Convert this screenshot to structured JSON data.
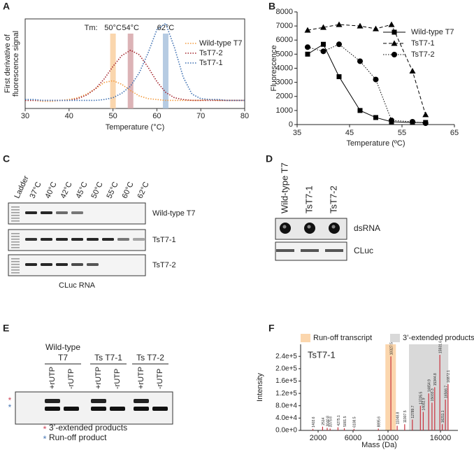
{
  "panel_labels": [
    "A",
    "B",
    "C",
    "D",
    "E",
    "F"
  ],
  "chart_data": [
    {
      "type": "line",
      "x": [
        30,
        32,
        34,
        36,
        38,
        40,
        42,
        44,
        46,
        48,
        50,
        52,
        54,
        56,
        58,
        60,
        62,
        64,
        66,
        68,
        70,
        72,
        74,
        76,
        78,
        80
      ],
      "xlim": [
        30,
        80
      ],
      "xticks": [
        30,
        40,
        50,
        60,
        70,
        80
      ],
      "ylim": [
        0,
        1
      ],
      "xlabel": "Temperature (°C)",
      "ylabel": [
        "First derivative of",
        "fluorescence signal"
      ],
      "line_style": "dotted",
      "legend": "upper right",
      "annotation": "Tm:",
      "bands": [
        {
          "value": 50,
          "label": "50°C",
          "color": "#f9cf9f"
        },
        {
          "value": 54,
          "label": "54°C",
          "color": "#d6a6a9"
        },
        {
          "value": 62,
          "label": "62°C",
          "color": "#a9c2dd"
        }
      ],
      "series": [
        {
          "name": "Wild-type T7",
          "color": "#f39a3d",
          "values": [
            0.09,
            0.09,
            0.08,
            0.08,
            0.09,
            0.1,
            0.12,
            0.16,
            0.22,
            0.29,
            0.31,
            0.27,
            0.2,
            0.14,
            0.11,
            0.1,
            0.09,
            0.09,
            0.09,
            0.09,
            0.09,
            0.1,
            0.09,
            0.09,
            0.09,
            0.09
          ]
        },
        {
          "name": "TsT7-2",
          "color": "#a3242c",
          "values": [
            0.09,
            0.09,
            0.09,
            0.09,
            0.09,
            0.09,
            0.11,
            0.15,
            0.22,
            0.33,
            0.47,
            0.59,
            0.65,
            0.6,
            0.46,
            0.3,
            0.18,
            0.12,
            0.1,
            0.09,
            0.09,
            0.09,
            0.09,
            0.09,
            0.09,
            0.09
          ]
        },
        {
          "name": "TsT7-1",
          "color": "#3a6db0",
          "values": [
            0.1,
            0.1,
            0.09,
            0.09,
            0.09,
            0.09,
            0.09,
            0.09,
            0.09,
            0.1,
            0.12,
            0.17,
            0.25,
            0.4,
            0.62,
            0.88,
            0.95,
            0.68,
            0.35,
            0.16,
            0.11,
            0.1,
            0.1,
            0.09,
            0.09,
            0.09
          ]
        }
      ]
    },
    {
      "type": "line",
      "x": [
        37,
        40,
        43,
        47,
        50,
        53,
        57,
        59.5
      ],
      "xlim": [
        35,
        65
      ],
      "xticks": [
        35,
        45,
        55,
        65
      ],
      "ylim": [
        0,
        8000
      ],
      "yticks": [
        0,
        1000,
        2000,
        3000,
        4000,
        5000,
        6000,
        7000,
        8000
      ],
      "xlabel": "Temperature (ºC)",
      "ylabel": "Fluorescence",
      "legend": "upper right",
      "series": [
        {
          "name": "Wild-type T7",
          "color": "#000000",
          "marker": "square",
          "dash": "solid",
          "values": [
            5000,
            5700,
            3400,
            1000,
            500,
            200,
            150,
            150
          ]
        },
        {
          "name": "TsT7-1",
          "color": "#000000",
          "marker": "triangle",
          "dash": "dashed",
          "values": [
            6700,
            6900,
            7100,
            7000,
            6800,
            7100,
            3800,
            700
          ]
        },
        {
          "name": "TsT7-2",
          "color": "#000000",
          "marker": "circle",
          "dash": "dotted",
          "values": [
            5500,
            5200,
            5700,
            4500,
            3200,
            300,
            200,
            100
          ]
        }
      ]
    },
    {
      "type": "stem",
      "title": "TsT7-1",
      "color": "#c8303c",
      "x": [
        1403.6,
        2514,
        3040.8,
        3375.6,
        4275.1,
        5001.5,
        6108.5,
        8895.6,
        10327.5,
        11048.8,
        11907.5,
        12789.7,
        13705.5,
        14032.9,
        14654.9,
        15033.3,
        15344.8,
        15931.6,
        16211.1,
        16566.7,
        16872.1
      ],
      "values": [
        5000,
        12000,
        8000,
        6000,
        10000,
        7000,
        5000,
        6000,
        240000,
        15000,
        20000,
        35000,
        80000,
        60000,
        120000,
        90000,
        140000,
        245000,
        20000,
        100000,
        150000
      ],
      "xlim": [
        0,
        18000
      ],
      "xticks": [
        2000,
        6000,
        10000,
        16000
      ],
      "ylim": [
        0,
        270000
      ],
      "yticks": [
        {
          "value": 0,
          "label": "0.0e+0"
        },
        {
          "value": 40000,
          "label": "4.0e+4"
        },
        {
          "value": 80000,
          "label": "8.0e+4"
        },
        {
          "value": 120000,
          "label": "1.2e+5"
        },
        {
          "value": 160000,
          "label": "1.6e+5"
        },
        {
          "value": 200000,
          "label": "2.0e+5"
        },
        {
          "value": 240000,
          "label": "2.4e+5"
        }
      ],
      "xlabel": "Mass (Da)",
      "ylabel": "Intensity",
      "legend": "top",
      "regions": [
        {
          "name": "Run-off transcript",
          "range": [
            9700,
            10900
          ],
          "color": "#fbd6ad"
        },
        {
          "name": "3’-extended products",
          "range": [
            12400,
            16900
          ],
          "color": "#d9d9d9"
        }
      ]
    }
  ],
  "gel_c": {
    "lanes": [
      "Ladder",
      "37°C",
      "40°C",
      "42°C",
      "45°C",
      "50°C",
      "55°C",
      "60°C",
      "62°C"
    ],
    "rows": [
      "Wild-type T7",
      "TsT7-1",
      "TsT7-2"
    ],
    "caption": "CLuc RNA"
  },
  "gel_d": {
    "lanes": [
      "Wild-type T7",
      "TsT7-1",
      "TsT7-2"
    ],
    "rows": [
      "dsRNA",
      "CLuc"
    ]
  },
  "gel_e": {
    "groups": [
      [
        "Wild-type",
        "T7"
      ],
      [
        "Ts T7-1"
      ],
      [
        "Ts T7-2"
      ]
    ],
    "lanes": [
      "+rUTP",
      "-rUTP",
      "+rUTP",
      "-rUTP",
      "+rUTP",
      "-rUTP"
    ],
    "legend": [
      {
        "symbol": "*",
        "color": "#d0465a",
        "text": "3’-extended products"
      },
      {
        "symbol": "*",
        "color": "#4a78b5",
        "text": "Run-off product"
      }
    ]
  }
}
